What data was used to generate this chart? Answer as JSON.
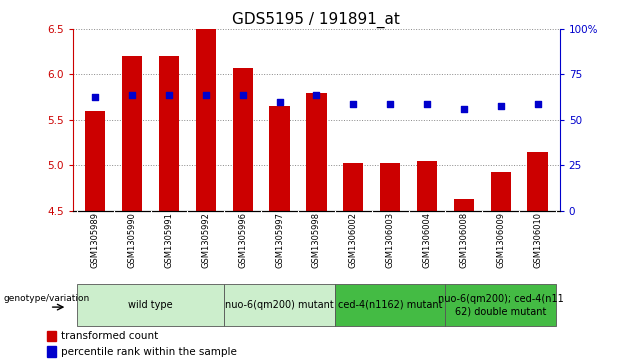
{
  "title": "GDS5195 / 191891_at",
  "samples": [
    "GSM1305989",
    "GSM1305990",
    "GSM1305991",
    "GSM1305992",
    "GSM1305996",
    "GSM1305997",
    "GSM1305998",
    "GSM1306002",
    "GSM1306003",
    "GSM1306004",
    "GSM1306008",
    "GSM1306009",
    "GSM1306010"
  ],
  "bar_values": [
    5.6,
    6.2,
    6.2,
    6.5,
    6.07,
    5.65,
    5.8,
    5.02,
    5.02,
    5.05,
    4.63,
    4.93,
    5.15
  ],
  "bar_base": 4.5,
  "blue_dot_values": [
    5.75,
    5.77,
    5.77,
    5.77,
    5.77,
    5.7,
    5.77,
    5.67,
    5.67,
    5.67,
    5.62,
    5.65,
    5.67
  ],
  "bar_color": "#cc0000",
  "dot_color": "#0000cc",
  "ylim": [
    4.5,
    6.5
  ],
  "yticks_left": [
    4.5,
    5.0,
    5.5,
    6.0,
    6.5
  ],
  "yticks_right": [
    0,
    25,
    50,
    75,
    100
  ],
  "group_defs": [
    {
      "label": "wild type",
      "start": 0,
      "end": 3,
      "color": "#cceecc"
    },
    {
      "label": "nuo-6(qm200) mutant",
      "start": 4,
      "end": 6,
      "color": "#cceecc"
    },
    {
      "label": "ced-4(n1162) mutant",
      "start": 7,
      "end": 9,
      "color": "#44bb44"
    },
    {
      "label": "nuo-6(qm200); ced-4(n11\n62) double mutant",
      "start": 10,
      "end": 12,
      "color": "#44bb44"
    }
  ],
  "genotype_label": "genotype/variation",
  "legend_items": [
    {
      "label": "transformed count",
      "color": "#cc0000"
    },
    {
      "label": "percentile rank within the sample",
      "color": "#0000cc"
    }
  ],
  "sample_bg": "#d0d0d0",
  "plot_bg": "#ffffff",
  "fig_bg": "#ffffff",
  "title_fontsize": 11,
  "tick_fontsize": 7.5,
  "sample_fontsize": 6,
  "group_fontsize": 7,
  "legend_fontsize": 7.5
}
